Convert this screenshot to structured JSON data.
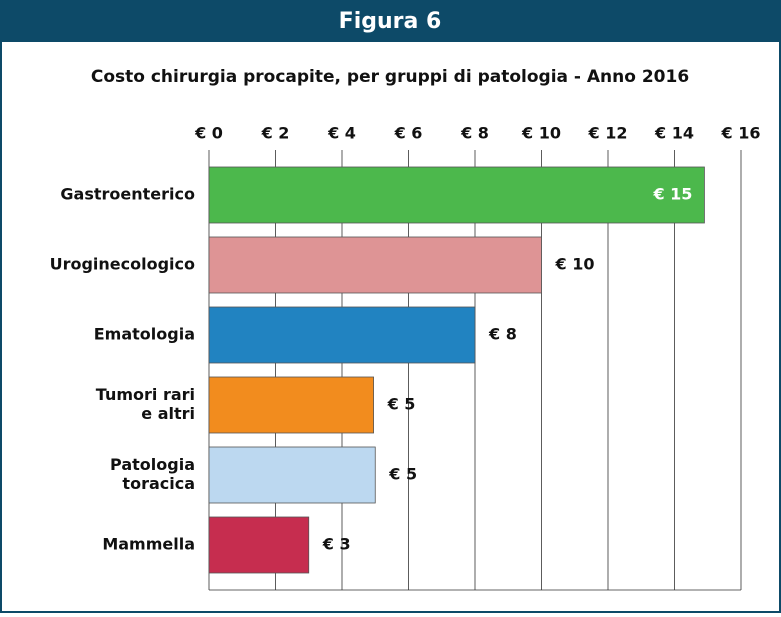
{
  "header": {
    "title": "Figura 6"
  },
  "chart_data": {
    "type": "hbar",
    "title": "Costo chirurgia procapite, per gruppi di patologia - Anno 2016",
    "categories": [
      [
        "Gastroenterico"
      ],
      [
        "Uroginecologico"
      ],
      [
        "Ematologia"
      ],
      [
        "Tumori rari",
        "e altri"
      ],
      [
        "Patologia",
        "toracica"
      ],
      [
        "Mammella"
      ]
    ],
    "values": [
      14.9,
      10,
      8,
      4.95,
      5,
      3
    ],
    "value_labels": [
      "€ 15",
      "€ 10",
      "€ 8",
      "€ 5",
      "€ 5",
      "€ 3"
    ],
    "colors": [
      "#4cb84c",
      "#de9495",
      "#2183c1",
      "#f28c1e",
      "#bcd8f0",
      "#c62d4f"
    ],
    "xlim": [
      0,
      16
    ],
    "xticks": [
      {
        "value": 0,
        "label": "€ 0"
      },
      {
        "value": 2,
        "label": "€ 2"
      },
      {
        "value": 4,
        "label": "€ 4"
      },
      {
        "value": 6,
        "label": "€ 6"
      },
      {
        "value": 8,
        "label": "€ 8"
      },
      {
        "value": 10,
        "label": "€ 10"
      },
      {
        "value": 12,
        "label": "€ 12"
      },
      {
        "value": 14,
        "label": "€ 14"
      },
      {
        "value": 16,
        "label": "€ 16"
      }
    ],
    "grid": true
  }
}
